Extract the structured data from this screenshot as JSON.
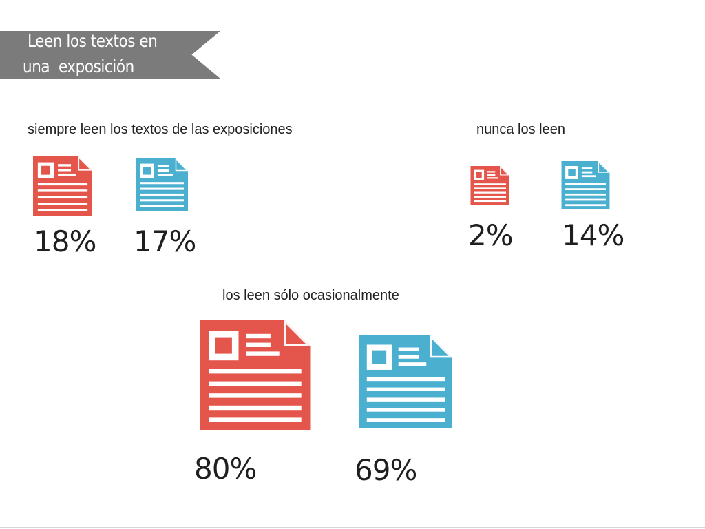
{
  "banner": {
    "line1": "Leen los textos en",
    "line2": "una  exposición"
  },
  "colors": {
    "series_red": "#e4564b",
    "series_blue": "#4bb0d0",
    "banner_bg": "#7b7b7b"
  },
  "icon": "document-icon",
  "chart_data": {
    "type": "pictograph",
    "title": "Leen los textos en una exposición",
    "categories": [
      "siempre leen los textos de las exposiciones",
      "nunca los leen",
      "los leen sólo ocasionalmente"
    ],
    "series": [
      {
        "color": "#e4564b",
        "values": [
          18,
          2,
          80
        ]
      },
      {
        "color": "#4bb0d0",
        "values": [
          17,
          14,
          69
        ]
      }
    ],
    "labels": {
      "always": {
        "red": "18%",
        "blue": "17%"
      },
      "never": {
        "red": "2%",
        "blue": "14%"
      },
      "occasionally": {
        "red": "80%",
        "blue": "69%"
      }
    }
  }
}
